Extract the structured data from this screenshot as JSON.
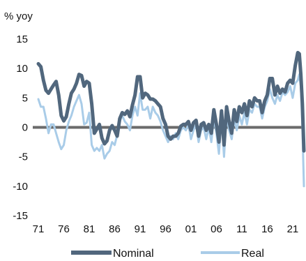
{
  "chart_data": {
    "type": "line",
    "title": "",
    "ylabel": "% yoy",
    "xlabel": "",
    "ylim": [
      -15,
      15
    ],
    "yticks": [
      15,
      10,
      5,
      0,
      -5,
      -10,
      -15
    ],
    "xlim": [
      1971,
      2023.2
    ],
    "xtick_values": [
      1971,
      1976,
      1981,
      1986,
      1991,
      1996,
      2001,
      2006,
      2011,
      2016,
      2021
    ],
    "xtick_labels": [
      "71",
      "76",
      "81",
      "86",
      "91",
      "96",
      "01",
      "06",
      "11",
      "16",
      "21"
    ],
    "grid": false,
    "zero_line": true,
    "legend": {
      "placement": "bottom-center",
      "entries": [
        "Nominal",
        "Real"
      ]
    },
    "colors": {
      "Nominal": "#51677d",
      "Real": "#a9cce8",
      "zero_line": "#6b6b6b"
    },
    "series": [
      {
        "name": "Nominal",
        "x": [
          1971,
          1971.5,
          1972,
          1972.5,
          1973,
          1973.5,
          1974,
          1974.5,
          1975,
          1975.5,
          1976,
          1976.5,
          1977,
          1977.5,
          1978,
          1978.5,
          1979,
          1979.5,
          1980,
          1980.5,
          1981,
          1981.5,
          1982,
          1982.5,
          1983,
          1983.5,
          1984,
          1984.5,
          1985,
          1985.5,
          1986,
          1986.5,
          1987,
          1987.5,
          1988,
          1988.5,
          1989,
          1989.5,
          1990,
          1990.5,
          1991,
          1991.5,
          1992,
          1992.5,
          1993,
          1993.5,
          1994,
          1994.5,
          1995,
          1995.5,
          1996,
          1996.5,
          1997,
          1997.5,
          1998,
          1998.5,
          1999,
          1999.5,
          2000,
          2000.5,
          2001,
          2001.5,
          2002,
          2002.5,
          2003,
          2003.5,
          2004,
          2004.5,
          2005,
          2005.5,
          2006,
          2006.5,
          2007,
          2007.5,
          2008,
          2008.5,
          2009,
          2009.5,
          2010,
          2010.5,
          2011,
          2011.5,
          2012,
          2012.5,
          2013,
          2013.5,
          2014,
          2014.5,
          2015,
          2015.5,
          2016,
          2016.5,
          2017,
          2017.5,
          2018,
          2018.5,
          2019,
          2019.5,
          2020,
          2020.5,
          2021,
          2021.5,
          2022,
          2022.3,
          2022.6,
          2022.9,
          2023.2
        ],
        "values": [
          10.8,
          10.3,
          8,
          6.3,
          5.8,
          6.5,
          7.2,
          7.8,
          5.5,
          2,
          1.1,
          1.8,
          4,
          5.8,
          6.5,
          7.5,
          9,
          8.8,
          7,
          7.8,
          7.5,
          4,
          -1,
          -0.3,
          0.5,
          -1.8,
          -2.8,
          -2.3,
          -0.5,
          0.3,
          -0.5,
          -1.5,
          1.5,
          2.5,
          2.2,
          2.8,
          1.8,
          3.8,
          5.5,
          8.6,
          8.6,
          5,
          5.8,
          5.5,
          4.8,
          4.8,
          4.5,
          4,
          3.5,
          1.5,
          0.5,
          -1.5,
          -2,
          -1.5,
          -1.5,
          -1,
          0.2,
          0.5,
          0.5,
          1,
          -0.5,
          0.8,
          1.2,
          -1.5,
          0.5,
          0.8,
          -0.5,
          0.5,
          -1,
          3,
          0.5,
          -2.5,
          2.8,
          -3,
          3.5,
          1,
          -1,
          3,
          1,
          3.5,
          2.5,
          4,
          2,
          4.5,
          3.5,
          5,
          4.5,
          4.5,
          2.5,
          4.5,
          5.5,
          8.3,
          8.3,
          5.5,
          7,
          5.8,
          6.5,
          6,
          7.5,
          8,
          7.5,
          10.5,
          12.7,
          12.5,
          9,
          4,
          -4
        ]
      },
      {
        "name": "Real",
        "x": [
          1971,
          1971.5,
          1972,
          1972.5,
          1973,
          1973.5,
          1974,
          1974.5,
          1975,
          1975.5,
          1976,
          1976.5,
          1977,
          1977.5,
          1978,
          1978.5,
          1979,
          1979.5,
          1980,
          1980.5,
          1981,
          1981.5,
          1982,
          1982.5,
          1983,
          1983.5,
          1984,
          1984.5,
          1985,
          1985.5,
          1986,
          1986.5,
          1987,
          1987.5,
          1988,
          1988.5,
          1989,
          1989.5,
          1990,
          1990.5,
          1991,
          1991.5,
          1992,
          1992.5,
          1993,
          1993.5,
          1994,
          1994.5,
          1995,
          1995.5,
          1996,
          1996.5,
          1997,
          1997.5,
          1998,
          1998.5,
          1999,
          1999.5,
          2000,
          2000.5,
          2001,
          2001.5,
          2002,
          2002.5,
          2003,
          2003.5,
          2004,
          2004.5,
          2005,
          2005.5,
          2006,
          2006.5,
          2007,
          2007.5,
          2008,
          2008.5,
          2009,
          2009.5,
          2010,
          2010.5,
          2011,
          2011.5,
          2012,
          2012.5,
          2013,
          2013.5,
          2014,
          2014.5,
          2015,
          2015.5,
          2016,
          2016.5,
          2017,
          2017.5,
          2018,
          2018.5,
          2019,
          2019.5,
          2020,
          2020.5,
          2021,
          2021.5,
          2022,
          2022.3,
          2022.6,
          2022.9,
          2023.2
        ],
        "values": [
          4.8,
          3.5,
          3.5,
          1.5,
          -1,
          0.5,
          0.5,
          -1,
          -2.5,
          -3.7,
          -3,
          -0.5,
          1,
          2,
          3.5,
          4.5,
          5.5,
          4,
          0.5,
          0.8,
          2.5,
          -3,
          -4,
          -3.5,
          -4,
          -3,
          -5.3,
          -4.5,
          -4,
          -2.5,
          -3,
          -1.3,
          1,
          2,
          1,
          0.5,
          -0.5,
          2,
          3.5,
          2,
          5.8,
          3,
          3,
          3.5,
          1.5,
          3.5,
          2.5,
          2,
          1,
          -0.5,
          -1.5,
          -2.5,
          -1.5,
          -2,
          -1,
          -2,
          -0.5,
          0,
          -0.5,
          0.5,
          -2,
          -0.5,
          0.5,
          -2.5,
          -0.5,
          0,
          -2,
          0,
          -2.5,
          1.5,
          -1,
          -4.5,
          1.5,
          -5,
          2,
          -0.5,
          -2,
          1.5,
          -0.5,
          2,
          0.5,
          2.5,
          0.5,
          3,
          2.5,
          4,
          3.5,
          3.5,
          1.5,
          3.5,
          4.5,
          6.5,
          5,
          4,
          5.5,
          4.5,
          6,
          5.5,
          6,
          7,
          5,
          7.5,
          8,
          9,
          7,
          0,
          -10
        ]
      }
    ]
  }
}
